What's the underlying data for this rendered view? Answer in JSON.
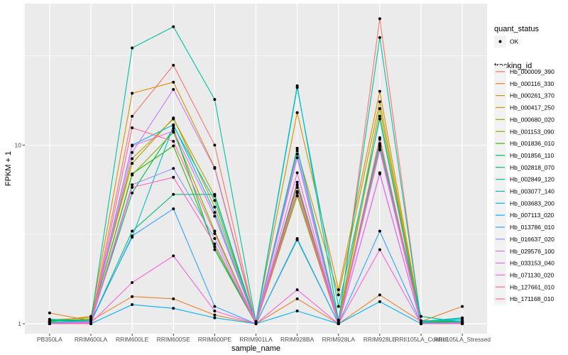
{
  "chart_data": {
    "type": "line",
    "title": "",
    "xlabel": "sample_name",
    "ylabel": "FPKM + 1",
    "y_scale": "log10",
    "ylim": [
      0.88,
      62
    ],
    "y_ticks": [
      1,
      10
    ],
    "y_tick_labels": [
      "1",
      "10"
    ],
    "grid": true,
    "legend_position": "right",
    "categories": [
      "PB350LA",
      "RRIM600LA",
      "RRIM600LE",
      "RRIM600SE",
      "RRIM600PE",
      "RRIM901LA",
      "RRIM928BA",
      "RRIM928LA",
      "RRIM928LE",
      "RRII105LA_Control",
      "RRII105LA_Stressed"
    ],
    "point_legend": {
      "title": "quant_status",
      "entries": [
        "OK"
      ]
    },
    "color_legend_title": "tracking_id",
    "series": [
      {
        "name": "Hb_000009_390",
        "color": "#F8766D",
        "values": [
          1.02,
          1.03,
          14.5,
          28.0,
          10.0,
          1.0,
          6.2,
          1.0,
          51.0,
          1.02,
          1.0
        ]
      },
      {
        "name": "Hb_000116_330",
        "color": "#EA8331",
        "values": [
          1.15,
          1.04,
          1.42,
          1.38,
          1.12,
          1.0,
          1.38,
          1.0,
          1.45,
          1.03,
          1.25
        ]
      },
      {
        "name": "Hb_000261_370",
        "color": "#D89000",
        "values": [
          1.05,
          1.08,
          19.5,
          22.5,
          7.5,
          1.03,
          15.2,
          1.55,
          20.0,
          1.04,
          1.02
        ]
      },
      {
        "name": "Hb_000417_250",
        "color": "#C09B00",
        "values": [
          1.03,
          1.1,
          7.9,
          14.2,
          4.5,
          1.02,
          9.3,
          1.45,
          17.5,
          1.02,
          1.01
        ]
      },
      {
        "name": "Hb_000680_020",
        "color": "#A3A500",
        "values": [
          1.02,
          1.05,
          8.4,
          14.0,
          5.2,
          1.01,
          9.6,
          1.05,
          16.0,
          1.01,
          1.02
        ]
      },
      {
        "name": "Hb_001153_090",
        "color": "#7CAE00",
        "values": [
          1.04,
          1.06,
          6.8,
          11.8,
          3.3,
          1.0,
          5.2,
          1.0,
          14.5,
          1.02,
          1.03
        ]
      },
      {
        "name": "Hb_001836_010",
        "color": "#39B600",
        "values": [
          1.04,
          1.05,
          6.9,
          9.9,
          2.7,
          1.0,
          5.5,
          1.0,
          10.8,
          1.03,
          1.02
        ]
      },
      {
        "name": "Hb_001856_110",
        "color": "#00BB4E",
        "values": [
          1.05,
          1.03,
          5.4,
          12.4,
          2.6,
          1.0,
          6.0,
          1.0,
          10.2,
          1.04,
          1.03
        ]
      },
      {
        "name": "Hb_002818_070",
        "color": "#00BF7D",
        "values": [
          1.03,
          1.02,
          3.3,
          5.3,
          5.3,
          1.0,
          2.95,
          1.0,
          10.0,
          1.1,
          1.02
        ]
      },
      {
        "name": "Hb_002849_120",
        "color": "#00C1A3",
        "values": [
          1.06,
          1.04,
          35.0,
          46.0,
          18.0,
          1.02,
          21.5,
          1.04,
          40.0,
          1.03,
          1.08
        ]
      },
      {
        "name": "Hb_003077_140",
        "color": "#00BFC4",
        "values": [
          1.02,
          1.04,
          3.05,
          12.8,
          4.9,
          1.0,
          21.0,
          1.25,
          14.0,
          1.02,
          1.07
        ]
      },
      {
        "name": "Hb_003683_200",
        "color": "#00BAE0",
        "values": [
          1.02,
          1.03,
          10.0,
          13.0,
          4.2,
          1.0,
          9.6,
          1.02,
          9.5,
          1.03,
          1.05
        ]
      },
      {
        "name": "Hb_007113_020",
        "color": "#00B0F6",
        "values": [
          1.0,
          1.0,
          1.28,
          1.22,
          1.08,
          1.0,
          1.18,
          1.0,
          1.33,
          1.0,
          1.0
        ]
      },
      {
        "name": "Hb_013786_010",
        "color": "#35A2FF",
        "values": [
          1.01,
          1.02,
          3.1,
          4.4,
          1.25,
          1.0,
          3.0,
          1.0,
          3.3,
          1.01,
          1.02
        ]
      },
      {
        "name": "Hb_016637_020",
        "color": "#9590FF",
        "values": [
          1.01,
          1.03,
          6.0,
          7.4,
          3.0,
          1.0,
          8.9,
          1.0,
          9.8,
          1.0,
          1.01
        ]
      },
      {
        "name": "Hb_029576_100",
        "color": "#C77CFF",
        "values": [
          1.0,
          1.02,
          9.1,
          20.5,
          7.4,
          1.0,
          8.5,
          1.0,
          7.0,
          1.0,
          1.0
        ]
      },
      {
        "name": "Hb_033153_040",
        "color": "#E76BF3",
        "values": [
          1.0,
          1.01,
          9.9,
          12.0,
          4.0,
          1.0,
          7.0,
          1.0,
          6.9,
          1.0,
          1.01
        ]
      },
      {
        "name": "Hb_071130_020",
        "color": "#FA62DB",
        "values": [
          1.0,
          1.01,
          1.7,
          2.4,
          1.18,
          1.0,
          1.55,
          1.0,
          2.6,
          1.0,
          1.0
        ]
      },
      {
        "name": "Hb_127661_010",
        "color": "#FF62BC",
        "values": [
          1.0,
          1.01,
          5.8,
          6.6,
          2.8,
          1.0,
          5.8,
          1.0,
          9.4,
          1.0,
          1.0
        ]
      },
      {
        "name": "Hb_171168_010",
        "color": "#FF6C91",
        "values": [
          1.0,
          1.0,
          12.5,
          10.5,
          3.2,
          1.0,
          5.4,
          1.0,
          11.0,
          1.0,
          1.0
        ]
      }
    ]
  }
}
